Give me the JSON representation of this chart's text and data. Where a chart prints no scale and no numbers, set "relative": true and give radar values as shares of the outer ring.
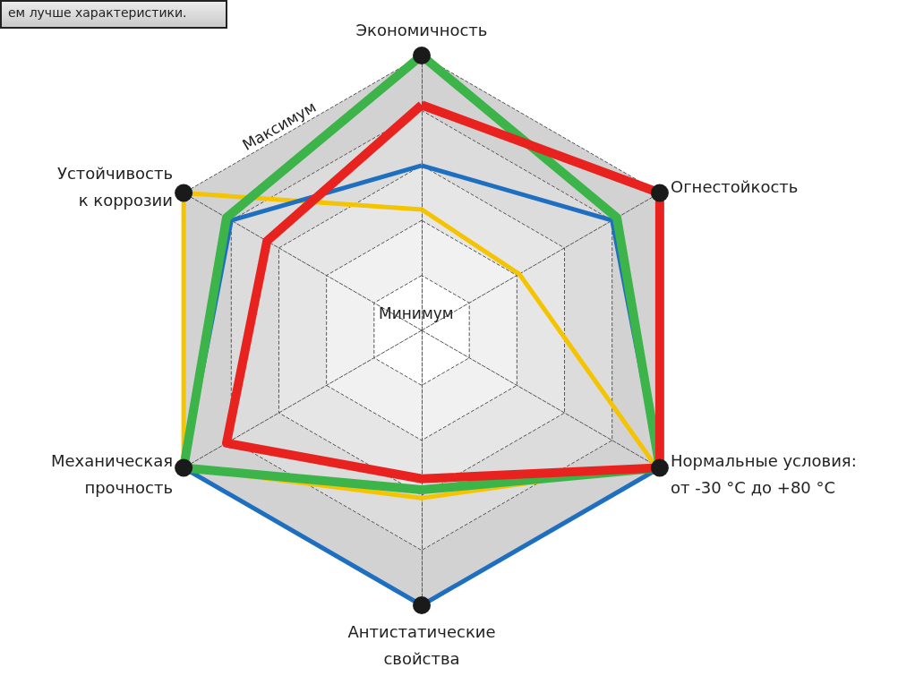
{
  "chart_data": {
    "type": "radar",
    "relative": true,
    "grid": true,
    "marker": "none",
    "categories": [
      "Экономичность",
      "Огнестойкость",
      "Нормальные условия:\nот -30 °C до +80 °C",
      "Антистатические\nсвойства",
      "Механическая\nпрочность",
      "Устойчивость\nк коррозии"
    ],
    "series": [
      {
        "color": "#f5c400",
        "values": [
          0.44,
          0.41,
          0.98,
          0.61,
          1.0,
          1.0
        ]
      },
      {
        "color": "#1f6fc0",
        "values": [
          0.6,
          0.8,
          1.0,
          1.0,
          1.0,
          0.8
        ]
      },
      {
        "color": "#3cb44a",
        "values": [
          1.0,
          0.82,
          1.0,
          0.58,
          1.0,
          0.82
        ]
      },
      {
        "color": "#e8231f",
        "values": [
          0.82,
          1.0,
          1.0,
          0.54,
          0.82,
          0.65
        ]
      }
    ],
    "annotations": [
      "ем лучше характеристики.",
      "Максимум",
      "Минимум"
    ]
  }
}
